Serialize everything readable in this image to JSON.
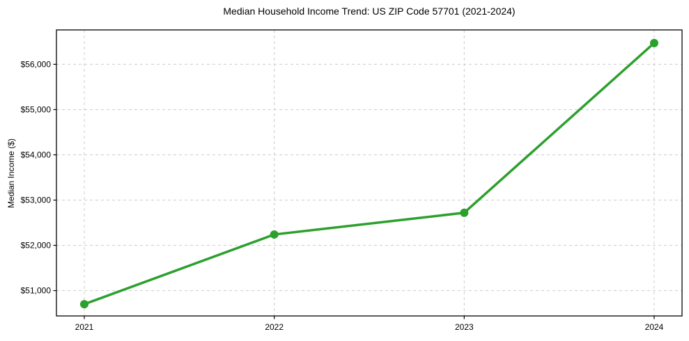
{
  "chart_data": {
    "type": "line",
    "title": "Median Household Income Trend: US ZIP Code 57701 (2021-2024)",
    "xlabel": "",
    "ylabel": "Median Income ($)",
    "categories": [
      "2021",
      "2022",
      "2023",
      "2024"
    ],
    "values": [
      50700,
      52240,
      52720,
      56470
    ],
    "ylim": [
      50440,
      56760
    ],
    "yticks": {
      "values": [
        51000,
        52000,
        53000,
        54000,
        55000,
        56000
      ],
      "labels": [
        "$51,000",
        "$52,000",
        "$53,000",
        "$54,000",
        "$55,000",
        "$56,000"
      ]
    },
    "grid": true,
    "grid_style": "dashed",
    "legend": "none",
    "colors": {
      "line": "#2ca02c",
      "marker": "#2ca02c",
      "grid": "#cccccc",
      "axis": "#000000",
      "tick_label": "#000000",
      "background": "#ffffff"
    }
  }
}
